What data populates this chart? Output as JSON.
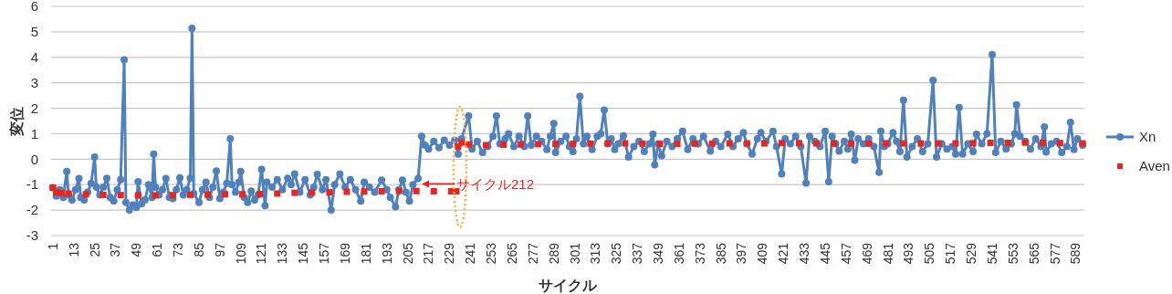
{
  "chart_data": {
    "type": "line",
    "xlabel": "サイクル",
    "ylabel": "変位",
    "xlim": [
      0,
      594
    ],
    "ylim": [
      -3,
      6
    ],
    "xticks": [
      1,
      13,
      25,
      37,
      49,
      61,
      73,
      85,
      97,
      109,
      121,
      133,
      145,
      157,
      169,
      181,
      193,
      205,
      217,
      229,
      241,
      253,
      265,
      277,
      289,
      301,
      313,
      325,
      337,
      349,
      361,
      373,
      385,
      397,
      409,
      421,
      433,
      445,
      457,
      469,
      481,
      493,
      505,
      517,
      529,
      541,
      553,
      565,
      577,
      589
    ],
    "yticks": [
      -3,
      -2,
      -1,
      0,
      1,
      2,
      3,
      4,
      5,
      6
    ],
    "grid": "y",
    "legend": "right",
    "annotations": [
      {
        "text": "サイクル212",
        "x": 212,
        "y": -0.97
      }
    ],
    "series": [
      {
        "name": "Xn",
        "color": "#4f81bd",
        "marker": "circle",
        "x": [
          1,
          3,
          5,
          7,
          9,
          10,
          12,
          14,
          16,
          17,
          19,
          21,
          23,
          25,
          26,
          28,
          30,
          32,
          34,
          36,
          38,
          40,
          42,
          43,
          45,
          47,
          49,
          50,
          52,
          54,
          56,
          58,
          59,
          60,
          62,
          64,
          66,
          68,
          70,
          72,
          74,
          76,
          78,
          80,
          81,
          82,
          85,
          87,
          89,
          91,
          93,
          95,
          97,
          99,
          101,
          103,
          104,
          106,
          108,
          109,
          111,
          113,
          115,
          117,
          119,
          121,
          123,
          124,
          127,
          130,
          133,
          136,
          138,
          140,
          143,
          146,
          149,
          151,
          153,
          156,
          158,
          161,
          163,
          166,
          169,
          172,
          175,
          178,
          180,
          183,
          186,
          190,
          193,
          195,
          198,
          200,
          202,
          204,
          206,
          208,
          211,
          213,
          215,
          217,
          220,
          223,
          226,
          229,
          232,
          234,
          236,
          240,
          242,
          245,
          248,
          251,
          254,
          256,
          258,
          261,
          263,
          266,
          269,
          272,
          274,
          276,
          279,
          282,
          285,
          287,
          289,
          290,
          293,
          296,
          298,
          300,
          302,
          304,
          306,
          308,
          311,
          314,
          316,
          318,
          320,
          322,
          324,
          326,
          329,
          332,
          335,
          338,
          341,
          344,
          346,
          347,
          349,
          351,
          354,
          357,
          360,
          363,
          366,
          369,
          372,
          375,
          379,
          382,
          385,
          389,
          392,
          395,
          398,
          400,
          403,
          406,
          408,
          411,
          415,
          417,
          420,
          422,
          425,
          428,
          431,
          434,
          436,
          439,
          442,
          445,
          447,
          449,
          451,
          453,
          456,
          458,
          460,
          462,
          464,
          467,
          470,
          473,
          476,
          477,
          479,
          481,
          484,
          486,
          488,
          490,
          492,
          495,
          498,
          501,
          504,
          507,
          509,
          512,
          515,
          518,
          520,
          522,
          524,
          527,
          530,
          532,
          535,
          538,
          541,
          543,
          546,
          549,
          552,
          554,
          555,
          557,
          560,
          563,
          566,
          569,
          571,
          572,
          575,
          578,
          581,
          584,
          586,
          588,
          590,
          593
        ],
        "values": [
          -1.12,
          -1.45,
          -1.2,
          -1.5,
          -0.48,
          -1.4,
          -1.6,
          -1.2,
          -0.76,
          -1.5,
          -1.6,
          -1.3,
          -0.95,
          0.08,
          -1.1,
          -1.4,
          -1.1,
          -0.75,
          -1.5,
          -1.65,
          -1.2,
          -0.8,
          3.9,
          -1.7,
          -2.0,
          -1.8,
          -1.9,
          -0.88,
          -1.75,
          -1.6,
          -1.0,
          -1.5,
          0.2,
          -1.1,
          -1.4,
          -1.2,
          -0.76,
          -1.5,
          -1.55,
          -1.2,
          -0.73,
          -1.4,
          -1.2,
          -0.75,
          5.14,
          -1.35,
          -1.7,
          -1.2,
          -0.9,
          -1.5,
          -1.1,
          -0.46,
          -1.55,
          -1.3,
          -0.95,
          0.8,
          -1.0,
          -1.3,
          -0.9,
          -0.48,
          -1.5,
          -1.7,
          -1.25,
          -1.6,
          -1.4,
          -0.4,
          -1.83,
          -0.9,
          -1.1,
          -0.8,
          -1.2,
          -0.75,
          -1.0,
          -0.58,
          -1.3,
          -0.8,
          -1.4,
          -1.1,
          -0.6,
          -1.2,
          -0.8,
          -2.0,
          -1.0,
          -0.58,
          -1.1,
          -0.8,
          -1.2,
          -1.65,
          -0.9,
          -1.1,
          -1.3,
          -0.82,
          -1.2,
          -1.5,
          -1.87,
          -1.2,
          -0.82,
          -1.3,
          -1.65,
          -1.0,
          -0.76,
          0.9,
          0.55,
          0.4,
          0.7,
          0.45,
          0.75,
          0.55,
          0.75,
          0.2,
          0.8,
          1.7,
          0.4,
          0.7,
          0.26,
          0.5,
          0.9,
          1.7,
          0.6,
          0.8,
          1.0,
          0.5,
          0.9,
          0.5,
          1.7,
          0.55,
          0.9,
          0.7,
          0.38,
          0.9,
          1.4,
          0.26,
          0.7,
          0.9,
          0.5,
          0.3,
          0.8,
          2.47,
          0.6,
          0.9,
          0.38,
          0.9,
          1.0,
          1.93,
          0.6,
          0.8,
          0.38,
          0.6,
          0.92,
          0.08,
          0.5,
          0.7,
          0.3,
          0.6,
          0.98,
          -0.22,
          0.6,
          0.14,
          0.7,
          0.5,
          0.8,
          1.1,
          0.38,
          0.8,
          0.6,
          0.9,
          0.32,
          0.7,
          0.5,
          0.98,
          0.5,
          0.8,
          1.04,
          0.6,
          0.2,
          0.8,
          1.04,
          0.7,
          1.1,
          0.5,
          -0.58,
          0.8,
          0.6,
          0.9,
          0.5,
          -0.94,
          0.9,
          0.7,
          0.5,
          1.1,
          -0.88,
          0.9,
          0.6,
          0.32,
          0.7,
          0.4,
          0.98,
          -0.04,
          0.8,
          0.6,
          0.8,
          0.5,
          -0.52,
          1.1,
          0.5,
          0.6,
          1.04,
          0.7,
          0.3,
          2.32,
          0.08,
          0.5,
          0.8,
          0.3,
          0.6,
          3.1,
          0.08,
          0.6,
          0.4,
          0.5,
          0.2,
          2.03,
          0.2,
          0.6,
          0.3,
          0.98,
          0.6,
          1.0,
          4.11,
          0.26,
          0.7,
          0.4,
          0.6,
          1.0,
          2.14,
          0.9,
          0.7,
          0.4,
          0.8,
          0.5,
          1.27,
          0.28,
          0.6,
          0.7,
          0.26,
          0.5,
          1.45,
          0.38,
          0.8,
          0.55
        ]
      },
      {
        "name": "Aven",
        "type": "scatter",
        "color": "#e8251f",
        "marker": "square",
        "x": [
          1,
          3,
          6,
          10,
          20,
          30,
          40,
          50,
          60,
          70,
          80,
          90,
          100,
          110,
          120,
          130,
          140,
          150,
          160,
          170,
          180,
          190,
          200,
          210,
          220,
          230,
          233,
          234,
          236,
          240,
          250,
          260,
          270,
          280,
          290,
          300,
          310,
          320,
          330,
          340,
          350,
          360,
          370,
          380,
          390,
          400,
          410,
          420,
          430,
          440,
          450,
          460,
          470,
          480,
          490,
          500,
          510,
          520,
          530,
          540,
          550,
          560,
          570,
          580,
          593
        ],
        "values": [
          -1.12,
          -1.3,
          -1.33,
          -1.35,
          -1.38,
          -1.4,
          -1.41,
          -1.42,
          -1.42,
          -1.41,
          -1.4,
          -1.39,
          -1.38,
          -1.38,
          -1.37,
          -1.35,
          -1.32,
          -1.31,
          -1.3,
          -1.28,
          -1.27,
          -1.26,
          -1.25,
          -1.25,
          -1.26,
          -1.26,
          -1.26,
          0.5,
          0.65,
          0.58,
          0.55,
          0.57,
          0.58,
          0.59,
          0.6,
          0.6,
          0.61,
          0.62,
          0.62,
          0.61,
          0.6,
          0.6,
          0.61,
          0.61,
          0.62,
          0.62,
          0.62,
          0.63,
          0.63,
          0.62,
          0.62,
          0.61,
          0.61,
          0.62,
          0.62,
          0.62,
          0.62,
          0.62,
          0.63,
          0.64,
          0.64,
          0.65,
          0.64,
          0.63,
          0.62
        ]
      }
    ]
  }
}
